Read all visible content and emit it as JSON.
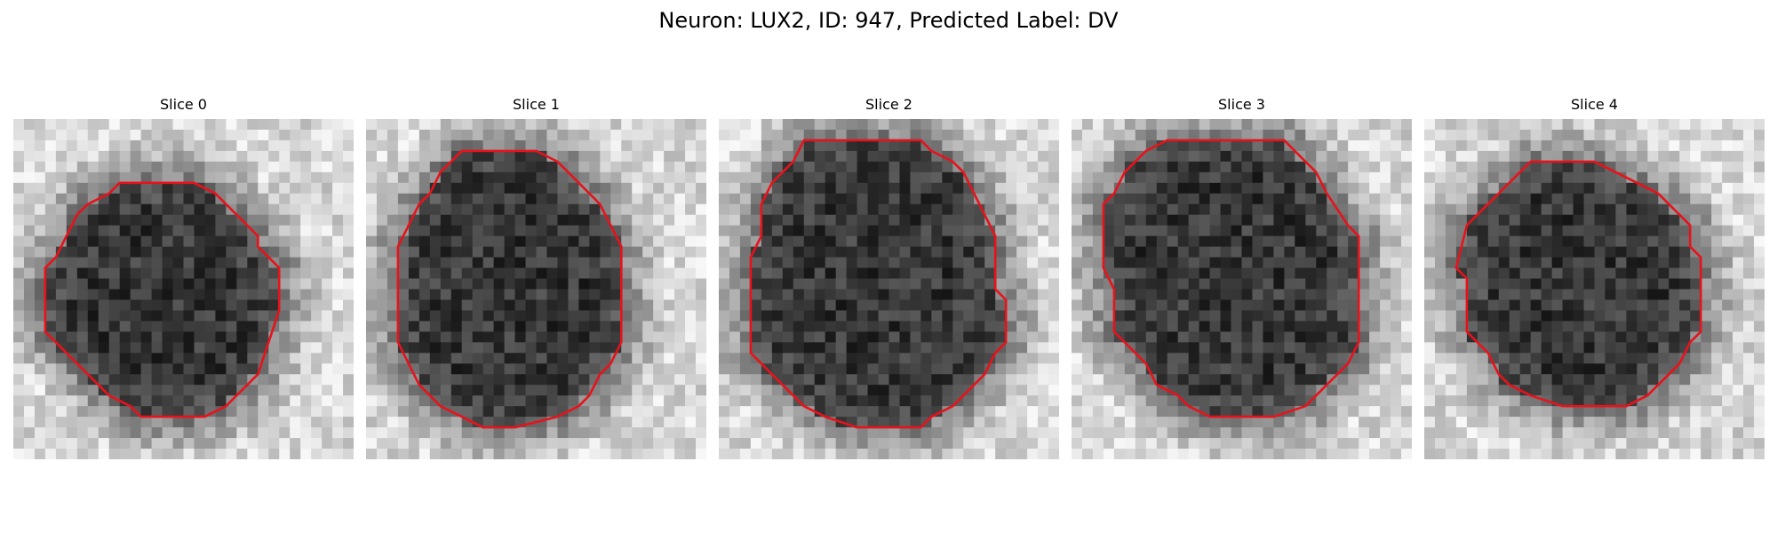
{
  "figure": {
    "title": "Neuron: LUX2, ID: 947, Predicted Label: DV"
  },
  "panels": [
    {
      "label": "Slice 0",
      "outline_color": "#e8121b",
      "outline": [
        [
          11,
          6
        ],
        [
          17,
          6
        ],
        [
          19,
          7
        ],
        [
          20,
          8
        ],
        [
          21,
          9
        ],
        [
          23,
          11
        ],
        [
          23,
          12
        ],
        [
          24,
          13
        ],
        [
          25,
          14
        ],
        [
          25,
          18
        ],
        [
          24,
          21
        ],
        [
          23,
          24
        ],
        [
          21,
          26
        ],
        [
          20,
          27
        ],
        [
          18,
          28
        ],
        [
          12,
          28
        ],
        [
          11,
          27
        ],
        [
          9,
          26
        ],
        [
          8,
          25
        ],
        [
          6,
          23
        ],
        [
          5,
          22
        ],
        [
          4,
          21
        ],
        [
          3,
          20
        ],
        [
          3,
          14
        ],
        [
          4,
          13
        ],
        [
          5,
          11
        ],
        [
          6,
          9
        ],
        [
          7,
          8
        ],
        [
          9,
          7
        ],
        [
          10,
          6
        ]
      ]
    },
    {
      "label": "Slice 1",
      "outline_color": "#e8121b",
      "outline": [
        [
          9,
          3
        ],
        [
          16,
          3
        ],
        [
          18,
          4
        ],
        [
          19,
          5
        ],
        [
          20,
          6
        ],
        [
          22,
          8
        ],
        [
          23,
          10
        ],
        [
          24,
          12
        ],
        [
          24,
          21
        ],
        [
          23,
          23
        ],
        [
          22,
          24
        ],
        [
          21,
          26
        ],
        [
          20,
          27
        ],
        [
          18,
          28
        ],
        [
          14,
          29
        ],
        [
          11,
          29
        ],
        [
          9,
          28
        ],
        [
          7,
          27
        ],
        [
          6,
          26
        ],
        [
          5,
          25
        ],
        [
          4,
          23
        ],
        [
          3,
          21
        ],
        [
          3,
          12
        ],
        [
          4,
          10
        ],
        [
          5,
          8
        ],
        [
          6,
          7
        ],
        [
          7,
          5
        ],
        [
          8,
          4
        ]
      ]
    },
    {
      "label": "Slice 2",
      "outline_color": "#e8121b",
      "outline": [
        [
          8,
          2
        ],
        [
          19,
          2
        ],
        [
          20,
          3
        ],
        [
          22,
          4
        ],
        [
          23,
          5
        ],
        [
          24,
          7
        ],
        [
          25,
          9
        ],
        [
          26,
          11
        ],
        [
          26,
          16
        ],
        [
          27,
          17
        ],
        [
          27,
          21
        ],
        [
          26,
          22
        ],
        [
          25,
          24
        ],
        [
          24,
          25
        ],
        [
          23,
          26
        ],
        [
          22,
          27
        ],
        [
          20,
          28
        ],
        [
          19,
          29
        ],
        [
          13,
          29
        ],
        [
          10,
          28
        ],
        [
          8,
          27
        ],
        [
          7,
          26
        ],
        [
          6,
          25
        ],
        [
          5,
          24
        ],
        [
          4,
          23
        ],
        [
          3,
          22
        ],
        [
          3,
          13
        ],
        [
          4,
          11
        ],
        [
          4,
          8
        ],
        [
          5,
          6
        ],
        [
          6,
          5
        ],
        [
          7,
          4
        ]
      ]
    },
    {
      "label": "Slice 3",
      "outline_color": "#e8121b",
      "outline": [
        [
          9,
          2
        ],
        [
          20,
          2
        ],
        [
          21,
          3
        ],
        [
          22,
          4
        ],
        [
          23,
          5
        ],
        [
          24,
          7
        ],
        [
          26,
          10
        ],
        [
          27,
          11
        ],
        [
          27,
          21
        ],
        [
          26,
          23
        ],
        [
          25,
          24
        ],
        [
          23,
          26
        ],
        [
          22,
          27
        ],
        [
          19,
          28
        ],
        [
          13,
          28
        ],
        [
          11,
          27
        ],
        [
          10,
          26
        ],
        [
          8,
          25
        ],
        [
          7,
          23
        ],
        [
          6,
          22
        ],
        [
          4,
          20
        ],
        [
          4,
          16
        ],
        [
          3,
          14
        ],
        [
          3,
          8
        ],
        [
          4,
          7
        ],
        [
          5,
          5
        ],
        [
          6,
          4
        ],
        [
          7,
          3
        ]
      ]
    },
    {
      "label": "Slice 4",
      "outline_color": "#e8121b",
      "outline": [
        [
          11,
          4
        ],
        [
          16,
          4
        ],
        [
          18,
          5
        ],
        [
          20,
          6
        ],
        [
          22,
          7
        ],
        [
          23,
          8
        ],
        [
          24,
          9
        ],
        [
          25,
          10
        ],
        [
          25,
          12
        ],
        [
          26,
          13
        ],
        [
          26,
          20
        ],
        [
          25,
          21
        ],
        [
          24,
          23
        ],
        [
          23,
          24
        ],
        [
          22,
          25
        ],
        [
          21,
          26
        ],
        [
          19,
          27
        ],
        [
          13,
          27
        ],
        [
          10,
          26
        ],
        [
          8,
          25
        ],
        [
          7,
          24
        ],
        [
          6,
          22
        ],
        [
          5,
          21
        ],
        [
          4,
          20
        ],
        [
          4,
          15
        ],
        [
          3,
          14
        ],
        [
          4,
          10
        ],
        [
          5,
          9
        ],
        [
          6,
          8
        ],
        [
          7,
          7
        ],
        [
          9,
          5
        ],
        [
          10,
          4
        ]
      ]
    }
  ]
}
